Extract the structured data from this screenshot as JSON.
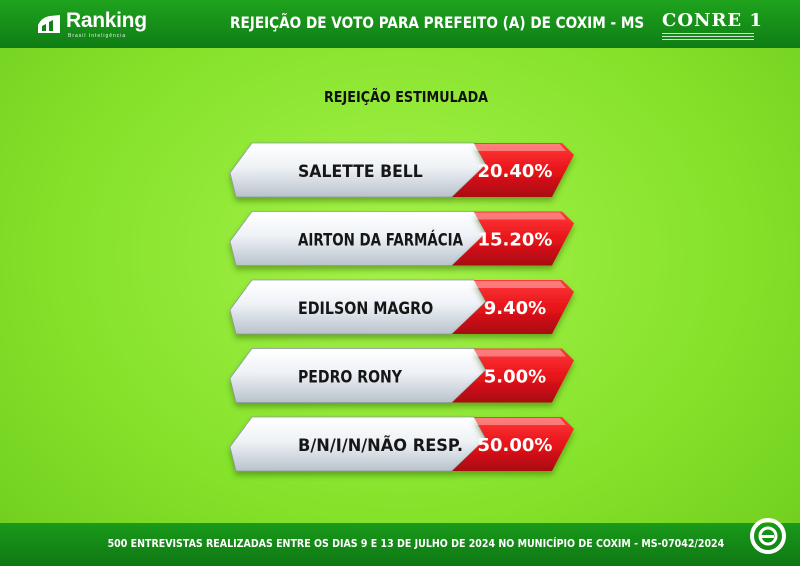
{
  "header": {
    "brand_name": "Ranking",
    "brand_tagline": "Brasil Inteligência",
    "title": "REJEIÇÃO DE VOTO PARA PREFEITO (A) DE COXIM - MS",
    "partner_name": "CONRE 1"
  },
  "footer": {
    "note": "500 ENTREVISTAS REALIZADAS ENTRE OS DIAS 9 E 13 DE JULHO DE 2024 NO MUNICÍPIO DE COXIM - MS-07042/2024"
  },
  "colors": {
    "header_green": "#128218",
    "background_green": "#8be630",
    "value_red": "#e8141a",
    "label_silver": "#e9eef4"
  },
  "icons": {
    "brand": "ranking-logo-icon",
    "partner": "conre-emblem-icon",
    "corner": "e-circle-icon"
  },
  "chart_data": {
    "type": "bar",
    "title": "REJEIÇÃO ESTIMULADA",
    "categories": [
      "SALETTE BELL",
      "AIRTON DA FARMÁCIA",
      "EDILSON MAGRO",
      "PEDRO RONY",
      "B/N/I/N/NÃO RESP."
    ],
    "values": [
      20.4,
      15.2,
      9.4,
      5.0,
      50.0
    ],
    "value_labels": [
      "20.40%",
      "15.20%",
      "9.40%",
      "5.00%",
      "50.00%"
    ],
    "unit": "%",
    "legend": "none",
    "grid": false
  }
}
